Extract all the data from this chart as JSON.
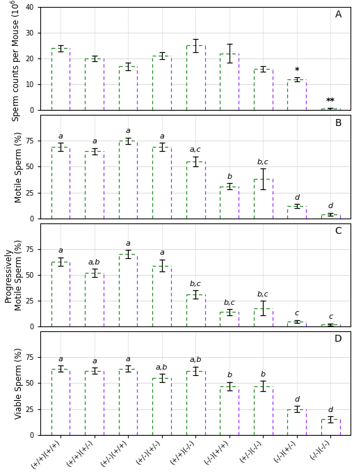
{
  "xlabel_labels": [
    "(+/+)(+/+)",
    "(+/+)(+/-)",
    "(+/-)(+/+)",
    "(+/-)(+/-)",
    "(+/+)(-/-)",
    "(-/-)(+/+)",
    "(+/-)(-/-)",
    "(-/-)(+/-)",
    "(-/-)(-/-)"
  ],
  "panel_A": {
    "values": [
      24.0,
      20.0,
      17.0,
      21.0,
      25.0,
      22.0,
      16.0,
      12.0,
      0.5
    ],
    "errors": [
      1.2,
      1.0,
      1.5,
      1.3,
      2.5,
      3.5,
      1.0,
      0.8,
      0.3
    ],
    "ylabel": "Sperm counts per Mouse (10$^6$)",
    "ylim": [
      0,
      40
    ],
    "yticks": [
      0,
      10,
      20,
      30,
      40
    ],
    "label": "A",
    "annotations": [
      "",
      "",
      "",
      "",
      "",
      "",
      "",
      "*",
      "**"
    ],
    "letter_labels": [
      "",
      "",
      "",
      "",
      "",
      "",
      "",
      "",
      ""
    ]
  },
  "panel_B": {
    "values": [
      69,
      65,
      75,
      69,
      55,
      31,
      38,
      12,
      4
    ],
    "errors": [
      4,
      3,
      3,
      4,
      5,
      3,
      10,
      2,
      1.5
    ],
    "ylabel": "Motile Sperm (%)",
    "ylim": [
      0,
      100
    ],
    "yticks": [
      0,
      25,
      50,
      75
    ],
    "label": "B",
    "letter_labels": [
      "a",
      "a",
      "a",
      "a",
      "a,c",
      "b",
      "b,c",
      "d",
      "d"
    ]
  },
  "panel_C": {
    "values": [
      63,
      52,
      70,
      59,
      31,
      14,
      18,
      5,
      2
    ],
    "errors": [
      4,
      4,
      4,
      6,
      4,
      3,
      7,
      1.5,
      1.0
    ],
    "ylabel": "Progressively\nMotile Sperm (%)",
    "ylim": [
      0,
      100
    ],
    "yticks": [
      0,
      25,
      50,
      75
    ],
    "label": "C",
    "letter_labels": [
      "a",
      "a,b",
      "a",
      "a",
      "b,c",
      "b,c",
      "b,c",
      "c",
      "c"
    ]
  },
  "panel_D": {
    "values": [
      64,
      62,
      64,
      55,
      62,
      47,
      47,
      25,
      15
    ],
    "errors": [
      3,
      3,
      3,
      4,
      4,
      4,
      5,
      3,
      3
    ],
    "ylabel": "Viable Sperm (%)",
    "ylim": [
      0,
      100
    ],
    "yticks": [
      0,
      25,
      50,
      75
    ],
    "label": "D",
    "letter_labels": [
      "a",
      "a",
      "a",
      "a,b",
      "a,b",
      "b",
      "b",
      "d",
      "d"
    ]
  },
  "bar_color": "#ffffff",
  "bar_edgecolor_green": "#228B22",
  "bar_edgecolor_purple": "#9B30FF",
  "error_color": "#000000",
  "background_color": "#ffffff",
  "grid_color": "#cccccc",
  "tick_label_fontsize": 7,
  "axis_label_fontsize": 8.5,
  "letter_fontsize": 8,
  "panel_label_fontsize": 10,
  "bar_width": 0.55,
  "n_bars": 9
}
